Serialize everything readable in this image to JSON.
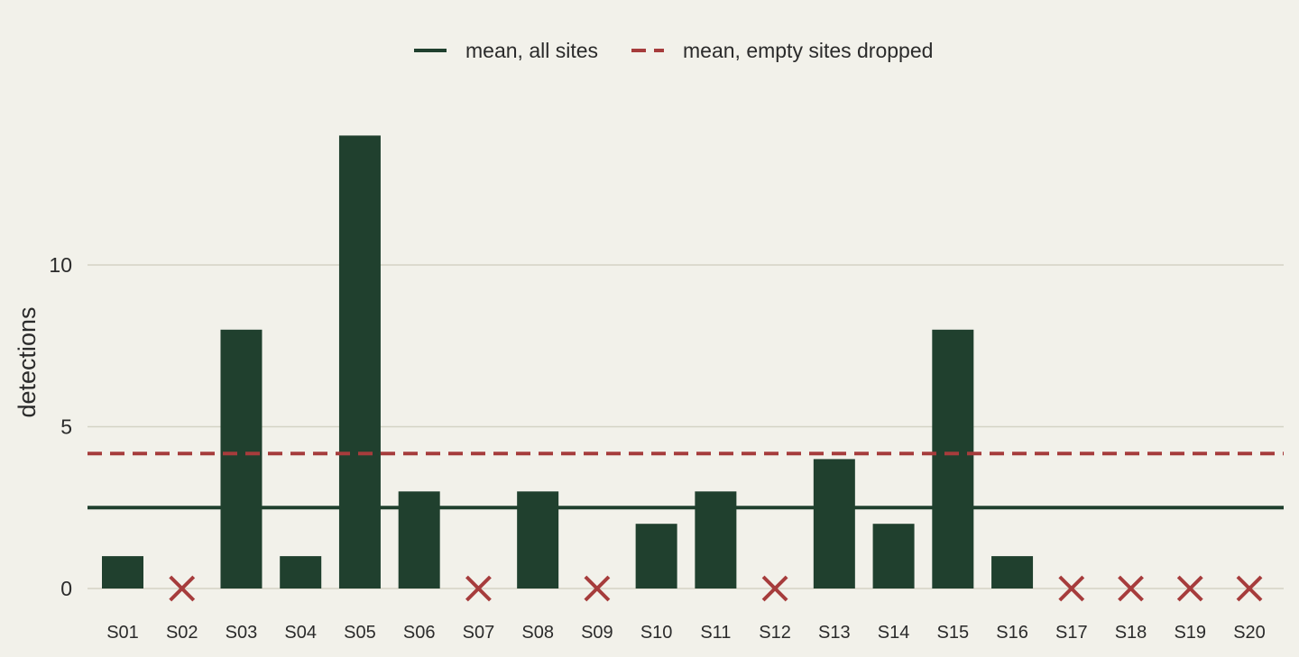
{
  "chart_data": {
    "type": "bar",
    "title": "",
    "xlabel": "",
    "ylabel": "detections",
    "categories": [
      "S01",
      "S02",
      "S03",
      "S04",
      "S05",
      "S06",
      "S07",
      "S08",
      "S09",
      "S10",
      "S11",
      "S12",
      "S13",
      "S14",
      "S15",
      "S16",
      "S17",
      "S18",
      "S19",
      "S20"
    ],
    "values": [
      1,
      0,
      8,
      1,
      14,
      3,
      0,
      3,
      0,
      2,
      3,
      0,
      4,
      2,
      8,
      1,
      0,
      0,
      0,
      0
    ],
    "empty_site_marker": "x",
    "ylim": [
      0,
      14.5
    ],
    "yticks": [
      0,
      5,
      10
    ],
    "grid": "horizontal",
    "legend_position": "top-center",
    "reference_lines": [
      {
        "name": "mean, all sites",
        "value": 2.5,
        "style": "solid",
        "color": "#20402e"
      },
      {
        "name": "mean, empty sites dropped",
        "value": 4.17,
        "style": "dashed",
        "color": "#a63c3c"
      }
    ],
    "colors": {
      "bar": "#20402e",
      "empty_marker": "#a63c3c",
      "grid": "#d4d3c5",
      "background": "#f2f1ea"
    }
  }
}
